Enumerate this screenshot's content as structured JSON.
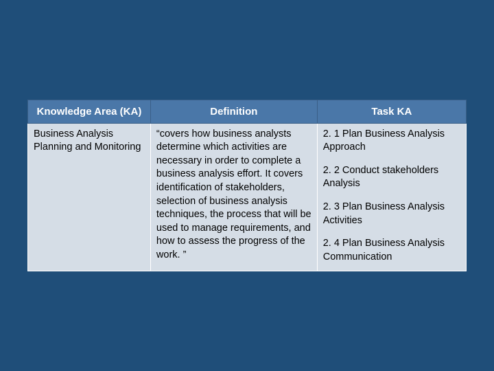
{
  "background_color": "#1f4e79",
  "table": {
    "header_bg": "#4a77a8",
    "header_fg": "#ffffff",
    "cell_bg": "#d5dde6",
    "cell_fg": "#000000",
    "border_color": "#ffffff",
    "font_size_header": 15,
    "font_size_body": 14.5,
    "columns": [
      {
        "label": "Knowledge Area (KA)",
        "width": "28%"
      },
      {
        "label": "Definition",
        "width": "38%"
      },
      {
        "label": "Task KA",
        "width": "34%"
      }
    ],
    "row": {
      "ka": "Business Analysis Planning and Monitoring",
      "definition": "“covers how business analysts determine which activities are necessary in order to complete a business analysis effort. It covers identification of stakeholders, selection of business analysis techniques, the process that will be used to manage requirements, and how to assess the progress of the work. ”",
      "tasks": [
        "2. 1 Plan Business Analysis Approach",
        "2. 2 Conduct stakeholders Analysis",
        "2. 3 Plan Business Analysis Activities",
        "2. 4 Plan Business Analysis Communication"
      ]
    }
  }
}
